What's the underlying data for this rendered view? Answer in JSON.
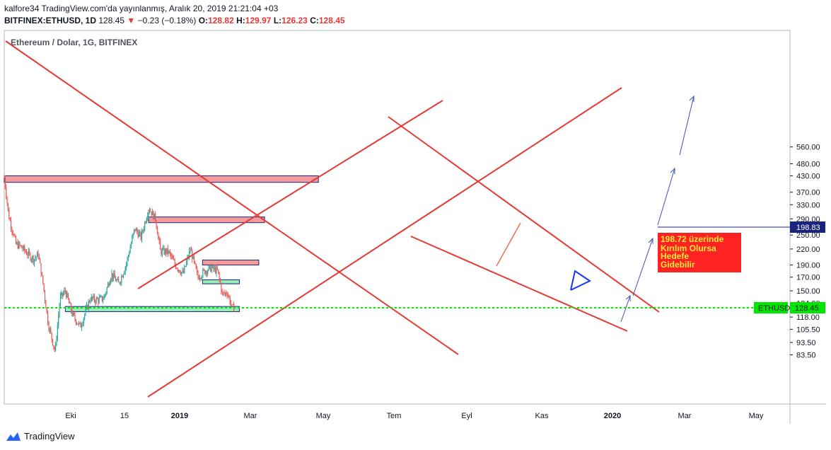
{
  "header": {
    "publish_line": "kalfore34 TradingView.com'da yayınlanmış, Aralık 20, 2019 21:21:04 +03",
    "symbol": "BITFINEX:ETHUSD, 1D",
    "last": "128.45",
    "change": "−0.23 (−0.18%)",
    "o_label": "O:",
    "o_value": "128.82",
    "h_label": "H:",
    "h_value": "129.97",
    "l_label": "L:",
    "l_value": "126.23",
    "c_label": "C:",
    "c_value": "128.45"
  },
  "pane_title": "Ethereum / Dolar, 1G, BITFINEX",
  "annotation": [
    "198.72 üzerinde",
    "Kırılım Olursa",
    "Hedefe",
    "Gidebilir"
  ],
  "footer_brand": "TradingView",
  "colors": {
    "up": "#26a69a",
    "down": "#ef5350",
    "trend": "#e53935",
    "zone_red": "#f28b8b",
    "zone_green": "#7ce8a8",
    "price_line": "#00e600",
    "arrow": "#3f51b5"
  },
  "chart_data": {
    "type": "candlestick",
    "title": "Ethereum / Dolar, 1G, BITFINEX",
    "y_scale": "log",
    "y_ticks": [
      "560.00",
      "480.00",
      "430.00",
      "370.00",
      "330.00",
      "290.00",
      "250.00",
      "220.00",
      "190.00",
      "170.00",
      "150.00",
      "134.00",
      "118.00",
      "105.50",
      "93.50",
      "83.50"
    ],
    "x_ticks": [
      "Eki",
      "15",
      "2019",
      "Mar",
      "May",
      "Tem",
      "Eyl",
      "Kas",
      "2020",
      "Mar",
      "May"
    ],
    "last_price": {
      "label": "ETHUSD",
      "value": "128.45"
    },
    "level_label": "198.83",
    "grid": false,
    "price_path": [
      [
        "2018-09-01",
        425
      ],
      [
        "2018-09-10",
        300
      ],
      [
        "2018-09-25",
        230
      ],
      [
        "2018-10-05",
        225
      ],
      [
        "2018-10-20",
        210
      ],
      [
        "2018-11-01",
        200
      ],
      [
        "2018-11-10",
        210
      ],
      [
        "2018-11-20",
        160
      ],
      [
        "2018-12-01",
        110
      ],
      [
        "2018-12-15",
        86
      ],
      [
        "2018-12-25",
        140
      ],
      [
        "2019-01-05",
        150
      ],
      [
        "2019-01-20",
        120
      ],
      [
        "2019-02-05",
        108
      ],
      [
        "2019-02-25",
        140
      ],
      [
        "2019-03-10",
        138
      ],
      [
        "2019-03-25",
        140
      ],
      [
        "2019-04-10",
        175
      ],
      [
        "2019-04-25",
        160
      ],
      [
        "2019-05-10",
        190
      ],
      [
        "2019-05-28",
        265
      ],
      [
        "2019-06-10",
        245
      ],
      [
        "2019-06-26",
        320
      ],
      [
        "2019-07-10",
        290
      ],
      [
        "2019-07-20",
        215
      ],
      [
        "2019-08-05",
        215
      ],
      [
        "2019-08-20",
        190
      ],
      [
        "2019-09-05",
        175
      ],
      [
        "2019-09-20",
        220
      ],
      [
        "2019-10-05",
        170
      ],
      [
        "2019-10-20",
        180
      ],
      [
        "2019-11-01",
        185
      ],
      [
        "2019-11-15",
        180
      ],
      [
        "2019-11-25",
        145
      ],
      [
        "2019-12-05",
        148
      ],
      [
        "2019-12-15",
        128
      ],
      [
        "2019-12-20",
        128.45
      ]
    ],
    "zones": [
      {
        "kind": "resistance",
        "from": "2018-09-01",
        "to": "2020-06-10",
        "low": 405,
        "high": 430
      },
      {
        "kind": "resistance",
        "from": "2019-06-26",
        "to": "2020-02-20",
        "low": 280,
        "high": 295
      },
      {
        "kind": "resistance",
        "from": "2019-10-15",
        "to": "2020-02-08",
        "low": 190,
        "high": 198.83
      },
      {
        "kind": "support",
        "from": "2019-10-15",
        "to": "2019-12-30",
        "low": 160,
        "high": 166
      },
      {
        "kind": "support",
        "from": "2019-01-05",
        "to": "2019-12-30",
        "low": 124,
        "high": 130
      }
    ]
  }
}
